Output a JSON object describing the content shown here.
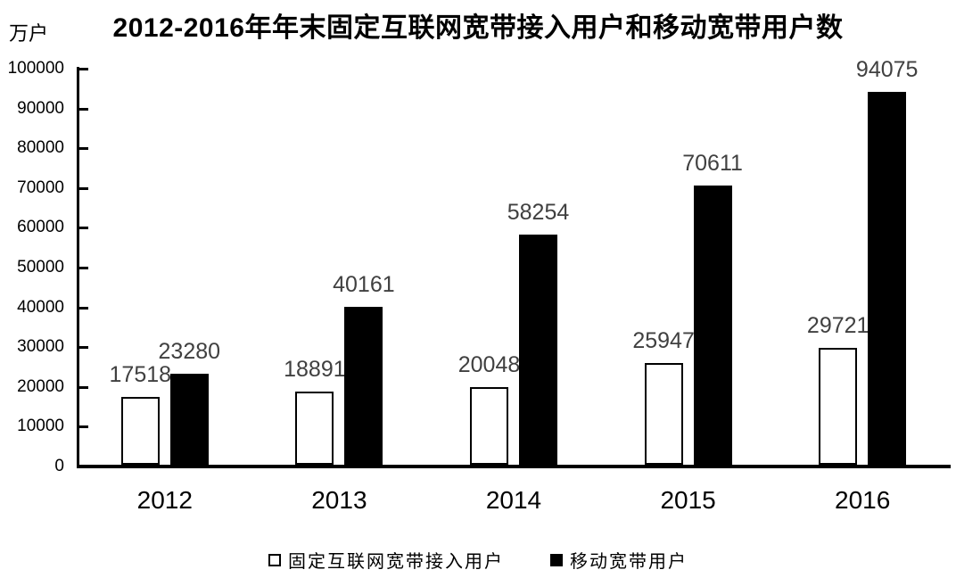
{
  "title": "2012-2016年年末固定互联网宽带接入用户和移动宽带用户数",
  "y_axis": {
    "unit_label": "万户",
    "tick_labels": [
      "0",
      "10000",
      "20000",
      "30000",
      "40000",
      "50000",
      "60000",
      "70000",
      "80000",
      "90000",
      "100000"
    ]
  },
  "legend": {
    "items": [
      {
        "label": "固定互联网宽带接入用户",
        "swatch": "white-square"
      },
      {
        "label": "移动宽带用户",
        "swatch": "black-square"
      }
    ]
  },
  "colors": {
    "axis": "#000000",
    "bar_fixed_fill": "#ffffff",
    "bar_fixed_border": "#000000",
    "bar_mobile_fill": "#000000",
    "data_label": "#404040",
    "text": "#000000"
  },
  "chart_data": {
    "type": "bar",
    "title": "2012-2016年年末固定互联网宽带接入用户和移动宽带用户数",
    "ylabel": "万户",
    "xlabel": "",
    "categories": [
      "2012",
      "2013",
      "2014",
      "2015",
      "2016"
    ],
    "series": [
      {
        "name": "固定互联网宽带接入用户",
        "fill": "#ffffff",
        "stroke": "#000000",
        "values": [
          17518,
          18891,
          20048,
          25947,
          29721
        ]
      },
      {
        "name": "移动宽带用户",
        "fill": "#000000",
        "stroke": "#000000",
        "values": [
          23280,
          40161,
          58254,
          70611,
          94075
        ]
      }
    ],
    "ylim": [
      0,
      100000
    ],
    "ytick_step": 10000,
    "grid": false,
    "legend_position": "bottom",
    "data_labels": true,
    "data_label_color": "#404040"
  }
}
